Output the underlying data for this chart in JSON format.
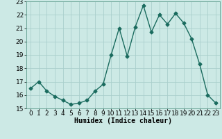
{
  "x": [
    0,
    1,
    2,
    3,
    4,
    5,
    6,
    7,
    8,
    9,
    10,
    11,
    12,
    13,
    14,
    15,
    16,
    17,
    18,
    19,
    20,
    21,
    22,
    23
  ],
  "y": [
    16.5,
    17.0,
    16.3,
    15.9,
    15.6,
    15.3,
    15.4,
    15.6,
    16.3,
    16.8,
    19.0,
    21.0,
    18.9,
    21.1,
    22.7,
    20.7,
    22.0,
    21.3,
    22.1,
    21.4,
    20.2,
    18.3,
    16.0,
    15.4
  ],
  "line_color": "#1a6b5e",
  "marker": "D",
  "markersize": 2.5,
  "linewidth": 1.0,
  "background_color": "#cce9e5",
  "grid_color": "#aacfcc",
  "xlabel": "Humidex (Indice chaleur)",
  "xlim": [
    -0.5,
    23.5
  ],
  "ylim": [
    15,
    23
  ],
  "yticks": [
    15,
    16,
    17,
    18,
    19,
    20,
    21,
    22,
    23
  ],
  "xticks": [
    0,
    1,
    2,
    3,
    4,
    5,
    6,
    7,
    8,
    9,
    10,
    11,
    12,
    13,
    14,
    15,
    16,
    17,
    18,
    19,
    20,
    21,
    22,
    23
  ],
  "label_fontsize": 7,
  "tick_fontsize": 6.5
}
